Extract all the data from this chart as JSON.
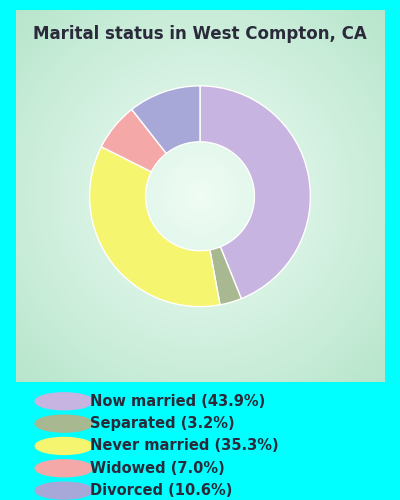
{
  "title": "Marital status in West Compton, CA",
  "outer_bg": "#00FFFF",
  "chart_bg_corners": [
    "#b8e8d0",
    "#e8f8f0",
    "#b8e8d0"
  ],
  "chart_bg_color": "#cceedd",
  "slices": [
    {
      "label": "Now married (43.9%)",
      "value": 43.9,
      "color": "#c8b4e0"
    },
    {
      "label": "Separated (3.2%)",
      "value": 3.2,
      "color": "#a8b890"
    },
    {
      "label": "Never married (35.3%)",
      "value": 35.3,
      "color": "#f5f570"
    },
    {
      "label": "Widowed (7.0%)",
      "value": 7.0,
      "color": "#f5a8a8"
    },
    {
      "label": "Divorced (10.6%)",
      "value": 10.6,
      "color": "#a8a8d8"
    }
  ],
  "legend_labels": [
    "Now married (43.9%)",
    "Separated (3.2%)",
    "Never married (35.3%)",
    "Widowed (7.0%)",
    "Divorced (10.6%)"
  ],
  "legend_colors": [
    "#c8b4e0",
    "#a8b890",
    "#f5f570",
    "#f5a8a8",
    "#a8a8d8"
  ],
  "title_fontsize": 12,
  "legend_fontsize": 10.5,
  "start_angle": 90,
  "donut_width": 0.38
}
